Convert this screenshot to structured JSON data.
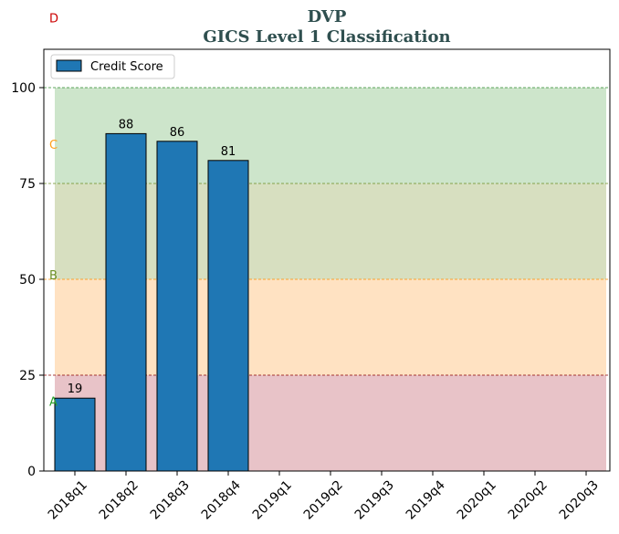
{
  "chart_data": {
    "type": "bar",
    "title": "DVP",
    "subtitle": "GICS Level 1 Classification",
    "categories": [
      "2018q1",
      "2018q2",
      "2018q3",
      "2018q4",
      "2019q1",
      "2019q2",
      "2019q3",
      "2019q4",
      "2020q1",
      "2020q2",
      "2020q3"
    ],
    "series": [
      {
        "name": "Credit Score",
        "values": [
          19,
          88,
          86,
          81,
          null,
          null,
          null,
          null,
          null,
          null,
          null
        ],
        "color": "#1f77b4"
      }
    ],
    "ylim": [
      0,
      110
    ],
    "yticks": [
      0,
      25,
      50,
      75,
      100
    ],
    "legend": "top-left",
    "grade_bands": [
      {
        "label": "A",
        "from": 0,
        "to": 25,
        "fill": "#e8c3c8",
        "label_color": "#2ca02c",
        "label_at": 18
      },
      {
        "label": "B",
        "from": 25,
        "to": 50,
        "fill": "#ffe2c2",
        "label_color": "#6b8e23",
        "label_at": 51
      },
      {
        "label": "C",
        "from": 50,
        "to": 75,
        "fill": "#d7dfc0",
        "label_color": "#ff9f1a",
        "label_at": 85
      },
      {
        "label": "D",
        "from": 75,
        "to": 100,
        "fill": "#cde5cb",
        "label_color": "#cc0000",
        "label_at": 118
      }
    ],
    "threshold_lines": [
      {
        "value": 25,
        "color": "#8b0000"
      },
      {
        "value": 50,
        "color": "#ff8c00"
      },
      {
        "value": 75,
        "color": "#6b8e23"
      },
      {
        "value": 100,
        "color": "#2e8b2e"
      }
    ]
  }
}
